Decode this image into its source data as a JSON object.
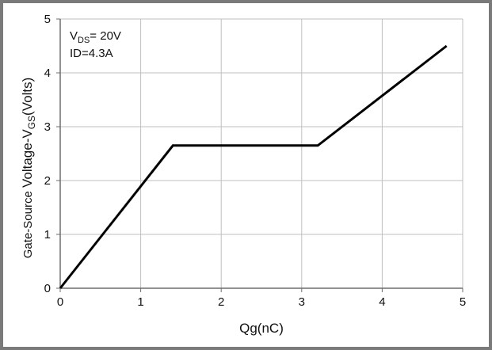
{
  "chart_data": {
    "type": "line",
    "title": "",
    "xlabel": "Qg(nC)",
    "ylabel": {
      "prefix_small": "Gate-Source ",
      "main": "Voltage-V",
      "subscript": "GS",
      "suffix": "(Volts)"
    },
    "xlim": [
      0,
      5
    ],
    "ylim": [
      0,
      5
    ],
    "x_ticks": [
      0,
      1,
      2,
      3,
      4,
      5
    ],
    "y_ticks": [
      0,
      1,
      2,
      3,
      4,
      5
    ],
    "grid": true,
    "series": [
      {
        "x": [
          0,
          1.4,
          3.2,
          4.8
        ],
        "y": [
          0,
          2.65,
          2.65,
          4.5
        ]
      }
    ],
    "annotations": {
      "vds": {
        "main": "V",
        "subscript": "DS",
        "rest": "= 20V"
      },
      "id": "ID=4.3A"
    },
    "colors": {
      "line": "#000000",
      "grid": "#bfbfbf",
      "axis": "#6e6e6e",
      "frame": "#7a7a7a"
    }
  }
}
